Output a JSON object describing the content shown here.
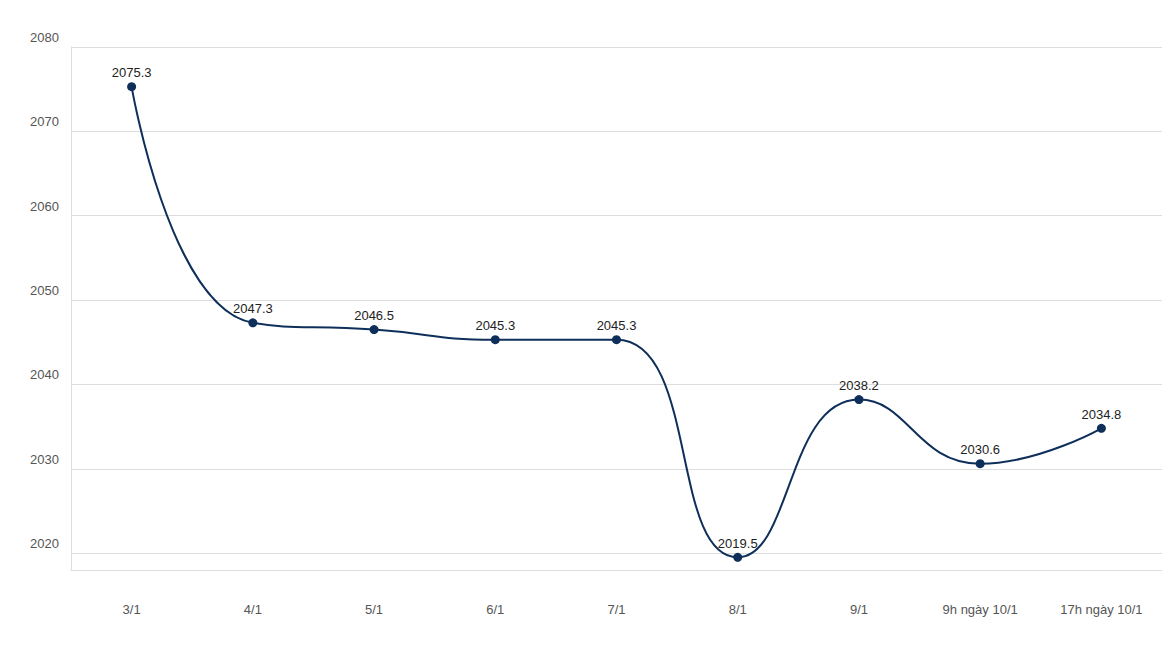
{
  "chart_data": {
    "type": "line",
    "categories": [
      "3/1",
      "4/1",
      "5/1",
      "6/1",
      "7/1",
      "8/1",
      "9/1",
      "9h ngày 10/1",
      "17h ngày 10/1"
    ],
    "values": [
      2075.3,
      2047.3,
      2046.5,
      2045.3,
      2045.3,
      2019.5,
      2038.2,
      2030.6,
      2034.8
    ],
    "color": "#0e2f5a",
    "ylim": [
      2018,
      2080
    ],
    "yticks": [
      2020,
      2030,
      2040,
      2050,
      2060,
      2070,
      2080
    ],
    "grid": true,
    "data_labels": true,
    "marker": "circle"
  }
}
